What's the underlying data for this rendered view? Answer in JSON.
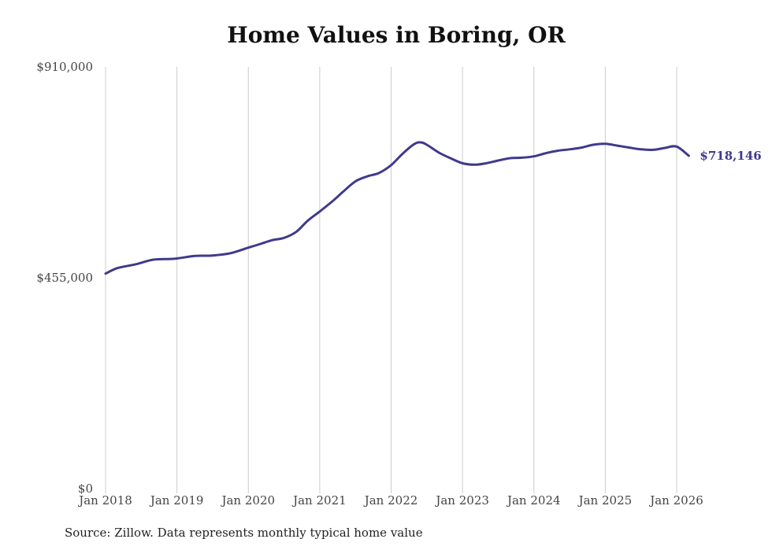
{
  "chart_data": {
    "type": "line",
    "title": "Home Values in Boring, OR",
    "xlabel": "",
    "ylabel": "",
    "ylim": [
      0,
      910000
    ],
    "y_ticks": [
      {
        "value": 0,
        "label": "$0"
      },
      {
        "value": 455000,
        "label": "$455,000"
      },
      {
        "value": 910000,
        "label": "$910,000"
      }
    ],
    "x_ticks": [
      {
        "value": 2018,
        "label": "Jan 2018"
      },
      {
        "value": 2019,
        "label": "Jan 2019"
      },
      {
        "value": 2020,
        "label": "Jan 2020"
      },
      {
        "value": 2021,
        "label": "Jan 2021"
      },
      {
        "value": 2022,
        "label": "Jan 2022"
      },
      {
        "value": 2023,
        "label": "Jan 2023"
      },
      {
        "value": 2024,
        "label": "Jan 2024"
      },
      {
        "value": 2025,
        "label": "Jan 2025"
      },
      {
        "value": 2026,
        "label": "Jan 2026"
      }
    ],
    "xlim": [
      2018,
      2026.17
    ],
    "grid": "vertical",
    "line_color": "#3f3a8c",
    "series": [
      {
        "name": "Typical home value",
        "x": [
          2018.0,
          2018.17,
          2018.42,
          2018.67,
          2018.96,
          2019.25,
          2019.5,
          2019.75,
          2020.0,
          2020.17,
          2020.33,
          2020.5,
          2020.67,
          2020.83,
          2021.0,
          2021.17,
          2021.33,
          2021.5,
          2021.67,
          2021.83,
          2022.0,
          2022.17,
          2022.33,
          2022.42,
          2022.5,
          2022.67,
          2022.83,
          2023.0,
          2023.17,
          2023.33,
          2023.5,
          2023.67,
          2023.83,
          2024.0,
          2024.17,
          2024.33,
          2024.5,
          2024.67,
          2024.83,
          2025.0,
          2025.17,
          2025.33,
          2025.5,
          2025.67,
          2025.83,
          2026.0,
          2026.17
        ],
        "y": [
          464000,
          476000,
          484000,
          494000,
          496000,
          502000,
          503000,
          508000,
          520000,
          528000,
          536000,
          541000,
          554000,
          578000,
          598000,
          619000,
          641000,
          663000,
          674000,
          681000,
          698000,
          724000,
          744000,
          747000,
          742000,
          725000,
          713000,
          702000,
          699000,
          702000,
          708000,
          713000,
          714000,
          717000,
          724000,
          729000,
          732000,
          736000,
          742000,
          744000,
          740000,
          736000,
          732000,
          731000,
          735000,
          738000,
          718146
        ]
      }
    ],
    "end_label": "$718,146",
    "source_note": "Source: Zillow. Data represents monthly typical home value"
  }
}
